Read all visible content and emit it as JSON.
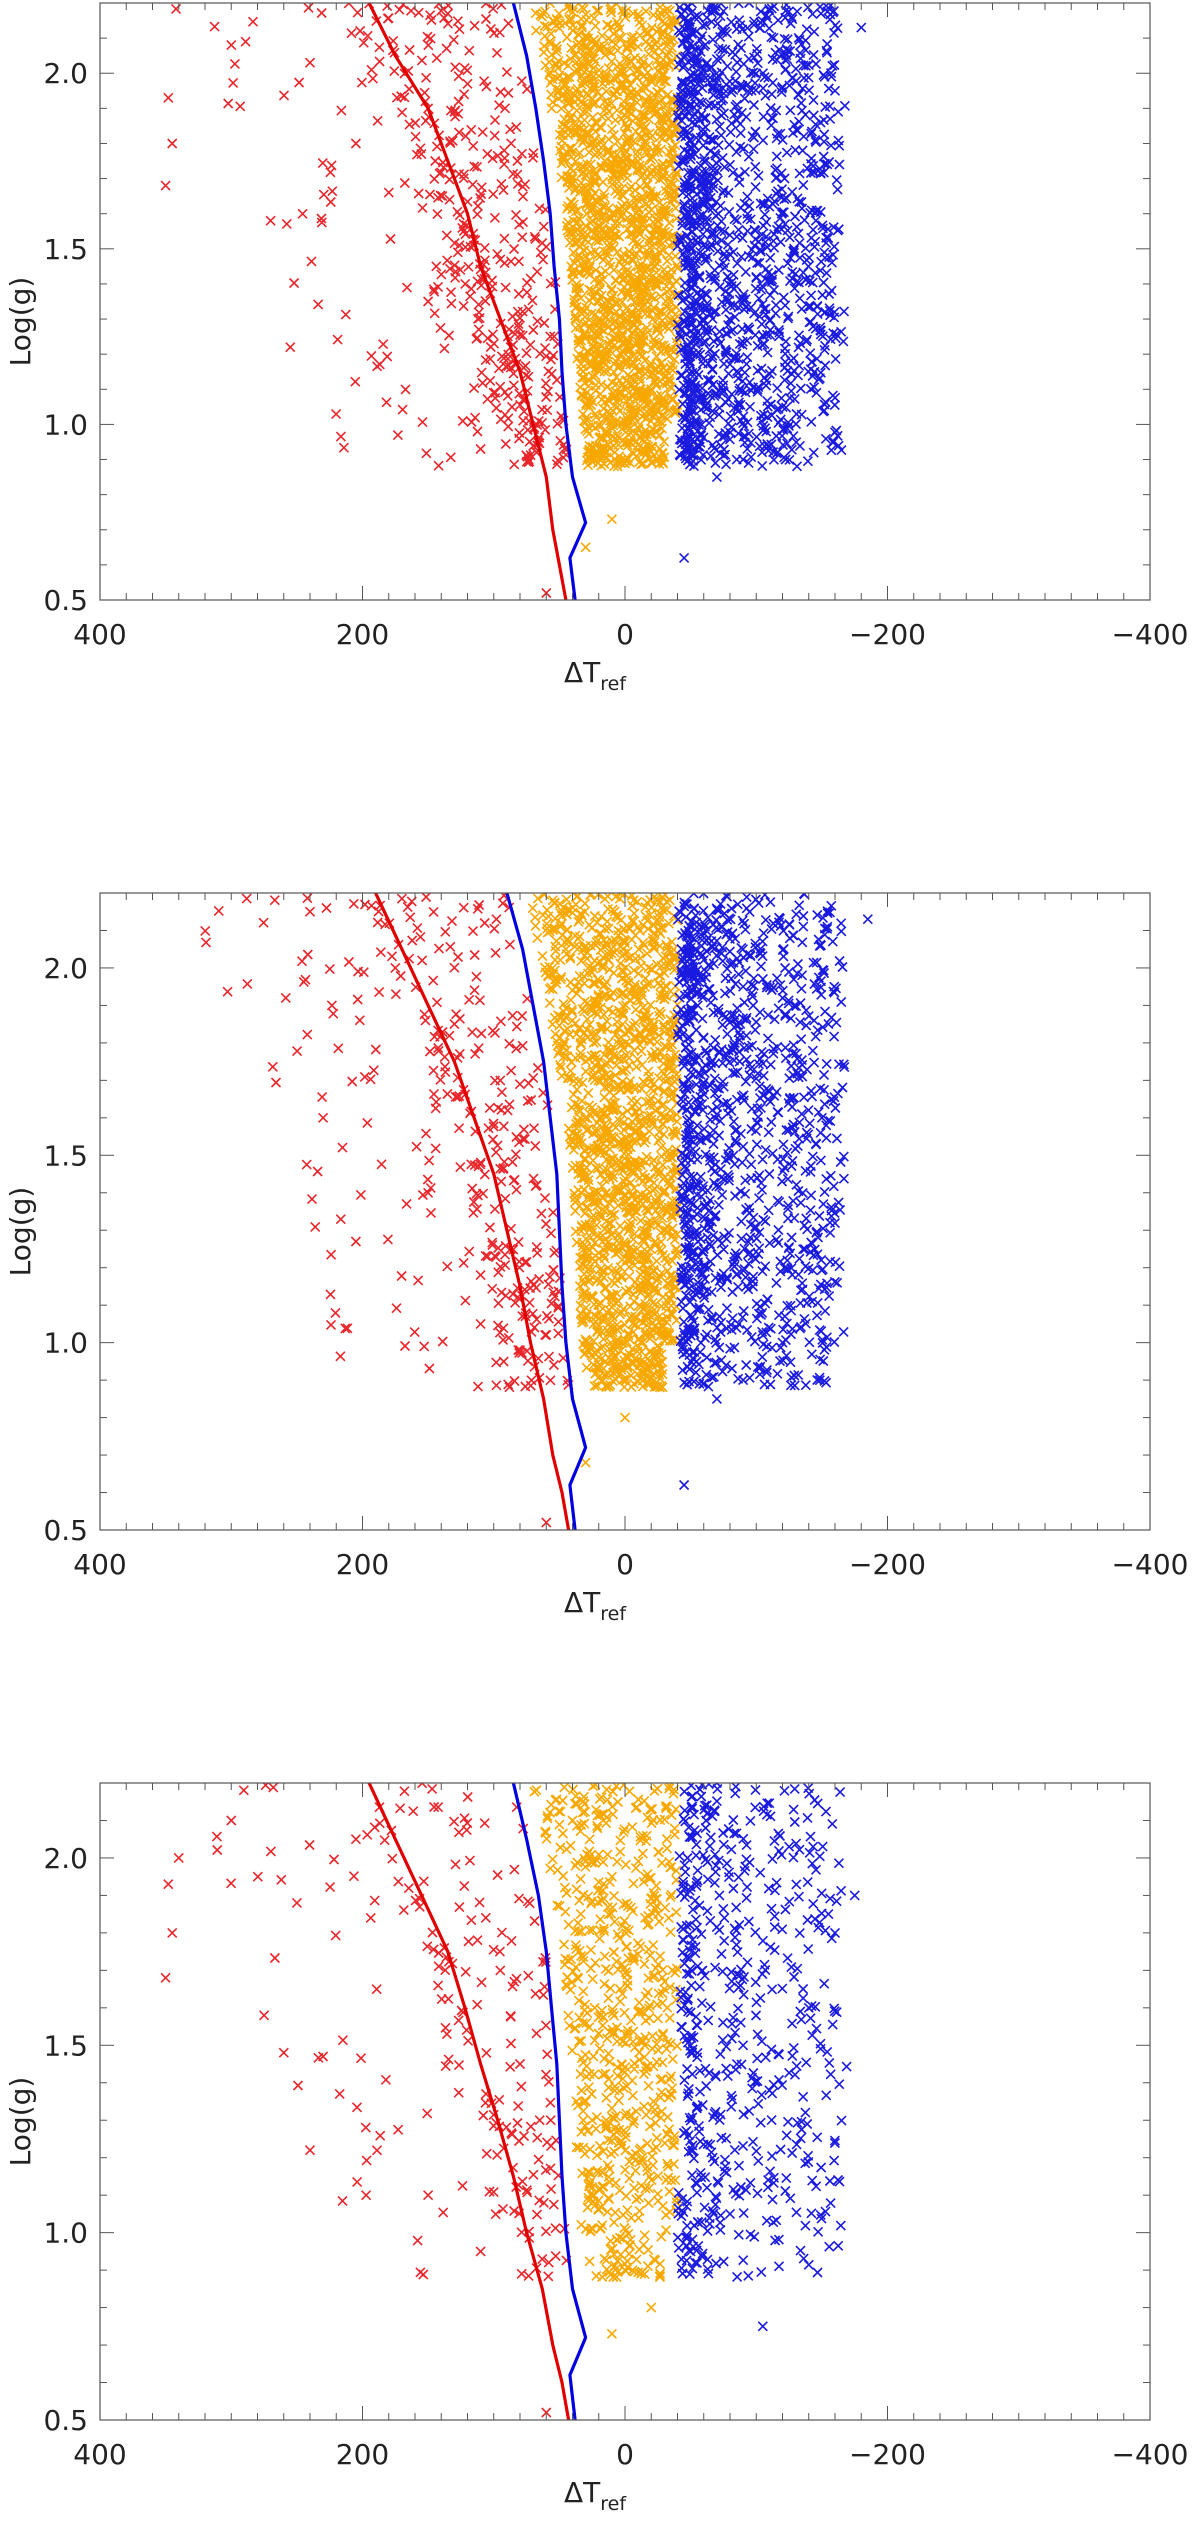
{
  "chart_data": [
    {
      "type": "scatter",
      "title": "",
      "xlabel": "ΔT",
      "xlabel_subscript": "ref",
      "ylabel": "Log(g)",
      "xlim": [
        400,
        -400
      ],
      "ylim": [
        2.2,
        0.5
      ],
      "x_ticks": [
        400,
        200,
        0,
        -200,
        -400
      ],
      "x_tick_labels": [
        "400",
        "200",
        "0",
        "−200",
        "−400"
      ],
      "y_ticks": [
        0.5,
        1.0,
        1.5,
        2.0
      ],
      "y_tick_labels": [
        "0.5",
        "1.0",
        "1.5",
        "2.0"
      ],
      "grid": false,
      "point_marker": "×",
      "series": [
        {
          "role": "cool",
          "color": "#e8262b",
          "approx_count": 420,
          "region_upper_x": "red boundary line",
          "region_lower_x": 140,
          "sample_points": [
            [
              350,
              1.68
            ],
            [
              345,
              1.8
            ],
            [
              348,
              1.93
            ],
            [
              300,
              2.08
            ],
            [
              270,
              1.58
            ],
            [
              255,
              1.22
            ],
            [
              240,
              2.03
            ],
            [
              205,
              1.8
            ],
            [
              150,
              1.35
            ],
            [
              110,
              0.93
            ],
            [
              95,
              1.47
            ],
            [
              82,
              1.75
            ],
            [
              60,
              0.52
            ],
            [
              120,
              1.97
            ],
            [
              180,
              1.66
            ]
          ]
        },
        {
          "role": "middle",
          "color": "#f7a800",
          "approx_count": 1700,
          "x_range": [
            -40,
            60
          ],
          "sample_points": [
            [
              30,
              0.65
            ],
            [
              10,
              0.73
            ],
            [
              0,
              0.9
            ],
            [
              -20,
              1.1
            ],
            [
              20,
              1.35
            ],
            [
              -30,
              1.6
            ],
            [
              45,
              1.85
            ],
            [
              5,
              2.1
            ],
            [
              -10,
              1.45
            ],
            [
              35,
              1.2
            ]
          ]
        },
        {
          "role": "hot",
          "color": "#1a1adf",
          "approx_count": 1300,
          "x_range": [
            -180,
            -40
          ],
          "sample_points": [
            [
              -45,
              0.62
            ],
            [
              -70,
              0.85
            ],
            [
              -90,
              0.9
            ],
            [
              -95,
              1.12
            ],
            [
              -120,
              1.05
            ],
            [
              -110,
              1.62
            ],
            [
              -145,
              1.81
            ],
            [
              -160,
              1.95
            ],
            [
              -180,
              2.13
            ],
            [
              -55,
              1.35
            ],
            [
              -70,
              2.04
            ],
            [
              -100,
              1.42
            ]
          ]
        }
      ],
      "lines": [
        {
          "name": "",
          "color": "#e00000",
          "points": [
            [
              195,
              2.2
            ],
            [
              175,
              2.05
            ],
            [
              150,
              1.9
            ],
            [
              135,
              1.75
            ],
            [
              120,
              1.6
            ],
            [
              110,
              1.45
            ],
            [
              95,
              1.3
            ],
            [
              80,
              1.15
            ],
            [
              70,
              1.0
            ],
            [
              60,
              0.85
            ],
            [
              55,
              0.7
            ],
            [
              50,
              0.6
            ],
            [
              45,
              0.5
            ]
          ]
        },
        {
          "name": "",
          "color": "#0000e0",
          "points": [
            [
              85,
              2.2
            ],
            [
              75,
              2.05
            ],
            [
              68,
              1.9
            ],
            [
              62,
              1.75
            ],
            [
              57,
              1.6
            ],
            [
              54,
              1.45
            ],
            [
              50,
              1.3
            ],
            [
              48,
              1.15
            ],
            [
              45,
              1.0
            ],
            [
              40,
              0.85
            ],
            [
              30,
              0.72
            ],
            [
              42,
              0.62
            ],
            [
              38,
              0.5
            ]
          ]
        }
      ]
    },
    {
      "type": "scatter",
      "title": "",
      "xlabel": "ΔT",
      "xlabel_subscript": "ref",
      "ylabel": "Log(g)",
      "xlim": [
        400,
        -400
      ],
      "ylim": [
        2.2,
        0.5
      ],
      "x_ticks": [
        400,
        200,
        0,
        -200,
        -400
      ],
      "x_tick_labels": [
        "400",
        "200",
        "0",
        "−200",
        "−400"
      ],
      "y_ticks": [
        0.5,
        1.0,
        1.5,
        2.0
      ],
      "y_tick_labels": [
        "0.5",
        "1.0",
        "1.5",
        "2.0"
      ],
      "grid": false,
      "point_marker": "×",
      "series": [
        {
          "role": "cool",
          "color": "#e8262b",
          "approx_count": 330,
          "region_upper_x": "red boundary line",
          "region_lower_x": 100,
          "sample_points": [
            [
              240,
              2.15
            ],
            [
              230,
              1.6
            ],
            [
              205,
              1.27
            ],
            [
              175,
              2.0
            ],
            [
              150,
              1.4
            ],
            [
              110,
              1.05
            ],
            [
              95,
              1.7
            ],
            [
              80,
              0.98
            ],
            [
              60,
              0.52
            ],
            [
              130,
              1.85
            ]
          ]
        },
        {
          "role": "middle",
          "color": "#f7a800",
          "approx_count": 1500,
          "x_range": [
            -40,
            60
          ],
          "sample_points": [
            [
              30,
              0.68
            ],
            [
              0,
              0.8
            ],
            [
              -20,
              1.15
            ],
            [
              20,
              1.4
            ],
            [
              -35,
              1.75
            ],
            [
              45,
              2.05
            ],
            [
              10,
              1.55
            ]
          ]
        },
        {
          "role": "hot",
          "color": "#1a1adf",
          "approx_count": 1100,
          "x_range": [
            -180,
            -40
          ],
          "sample_points": [
            [
              -45,
              0.62
            ],
            [
              -70,
              0.85
            ],
            [
              -90,
              0.9
            ],
            [
              -120,
              1.0
            ],
            [
              -110,
              1.45
            ],
            [
              -150,
              1.6
            ],
            [
              -155,
              1.85
            ],
            [
              -185,
              2.13
            ],
            [
              -60,
              1.25
            ],
            [
              -90,
              1.95
            ]
          ]
        }
      ],
      "lines": [
        {
          "name": "",
          "color": "#e00000",
          "points": [
            [
              190,
              2.2
            ],
            [
              170,
              2.05
            ],
            [
              150,
              1.9
            ],
            [
              130,
              1.75
            ],
            [
              115,
              1.6
            ],
            [
              100,
              1.45
            ],
            [
              90,
              1.3
            ],
            [
              80,
              1.15
            ],
            [
              72,
              1.0
            ],
            [
              62,
              0.85
            ],
            [
              55,
              0.7
            ],
            [
              48,
              0.6
            ],
            [
              43,
              0.5
            ]
          ]
        },
        {
          "name": "",
          "color": "#0000e0",
          "points": [
            [
              90,
              2.2
            ],
            [
              78,
              2.05
            ],
            [
              70,
              1.9
            ],
            [
              62,
              1.75
            ],
            [
              57,
              1.6
            ],
            [
              52,
              1.45
            ],
            [
              50,
              1.3
            ],
            [
              48,
              1.15
            ],
            [
              45,
              1.0
            ],
            [
              40,
              0.85
            ],
            [
              30,
              0.72
            ],
            [
              42,
              0.62
            ],
            [
              38,
              0.5
            ]
          ]
        }
      ]
    },
    {
      "type": "scatter",
      "title": "",
      "xlabel": "ΔT",
      "xlabel_subscript": "ref",
      "ylabel": "Log(g)",
      "xlim": [
        400,
        -400
      ],
      "ylim": [
        2.2,
        0.5
      ],
      "x_ticks": [
        400,
        200,
        0,
        -200,
        -400
      ],
      "x_tick_labels": [
        "400",
        "200",
        "0",
        "−200",
        "−400"
      ],
      "y_ticks": [
        0.5,
        1.0,
        1.5,
        2.0
      ],
      "y_tick_labels": [
        "0.5",
        "1.0",
        "1.5",
        "2.0"
      ],
      "grid": false,
      "point_marker": "×",
      "series": [
        {
          "role": "cool",
          "color": "#e8262b",
          "approx_count": 200,
          "region_upper_x": "red boundary line",
          "region_lower_x": 140,
          "sample_points": [
            [
              350,
              1.68
            ],
            [
              345,
              1.8
            ],
            [
              348,
              1.93
            ],
            [
              340,
              2.0
            ],
            [
              300,
              2.1
            ],
            [
              275,
              1.58
            ],
            [
              250,
              1.88
            ],
            [
              240,
              1.22
            ],
            [
              230,
              1.47
            ],
            [
              205,
              2.05
            ],
            [
              150,
              1.1
            ],
            [
              110,
              0.95
            ],
            [
              95,
              1.7
            ],
            [
              80,
              1.45
            ],
            [
              60,
              0.52
            ]
          ]
        },
        {
          "role": "middle",
          "color": "#f7a800",
          "approx_count": 650,
          "x_range": [
            -40,
            60
          ],
          "sample_points": [
            [
              10,
              0.73
            ],
            [
              0,
              0.9
            ],
            [
              -20,
              0.8
            ],
            [
              25,
              1.3
            ],
            [
              -30,
              1.65
            ],
            [
              40,
              2.1
            ],
            [
              10,
              1.95
            ],
            [
              -15,
              1.5
            ]
          ]
        },
        {
          "role": "hot",
          "color": "#1a1adf",
          "approx_count": 520,
          "x_range": [
            -180,
            -40
          ],
          "sample_points": [
            [
              -105,
              0.75
            ],
            [
              -50,
              0.95
            ],
            [
              -80,
              1.05
            ],
            [
              -110,
              1.38
            ],
            [
              -140,
              1.6
            ],
            [
              -160,
              1.8
            ],
            [
              -175,
              1.9
            ],
            [
              -155,
              1.85
            ],
            [
              -125,
              2.03
            ],
            [
              -70,
              2.2
            ],
            [
              -90,
              1.5
            ]
          ]
        }
      ],
      "lines": [
        {
          "name": "",
          "color": "#e00000",
          "points": [
            [
              195,
              2.2
            ],
            [
              175,
              2.05
            ],
            [
              155,
              1.9
            ],
            [
              135,
              1.75
            ],
            [
              122,
              1.6
            ],
            [
              110,
              1.45
            ],
            [
              97,
              1.3
            ],
            [
              85,
              1.15
            ],
            [
              75,
              1.0
            ],
            [
              63,
              0.85
            ],
            [
              55,
              0.7
            ],
            [
              48,
              0.6
            ],
            [
              43,
              0.5
            ]
          ]
        },
        {
          "name": "",
          "color": "#0000e0",
          "points": [
            [
              85,
              2.2
            ],
            [
              75,
              2.05
            ],
            [
              66,
              1.9
            ],
            [
              60,
              1.75
            ],
            [
              56,
              1.6
            ],
            [
              52,
              1.45
            ],
            [
              50,
              1.3
            ],
            [
              48,
              1.15
            ],
            [
              45,
              1.0
            ],
            [
              40,
              0.85
            ],
            [
              30,
              0.72
            ],
            [
              42,
              0.62
            ],
            [
              38,
              0.5
            ]
          ]
        }
      ]
    }
  ]
}
